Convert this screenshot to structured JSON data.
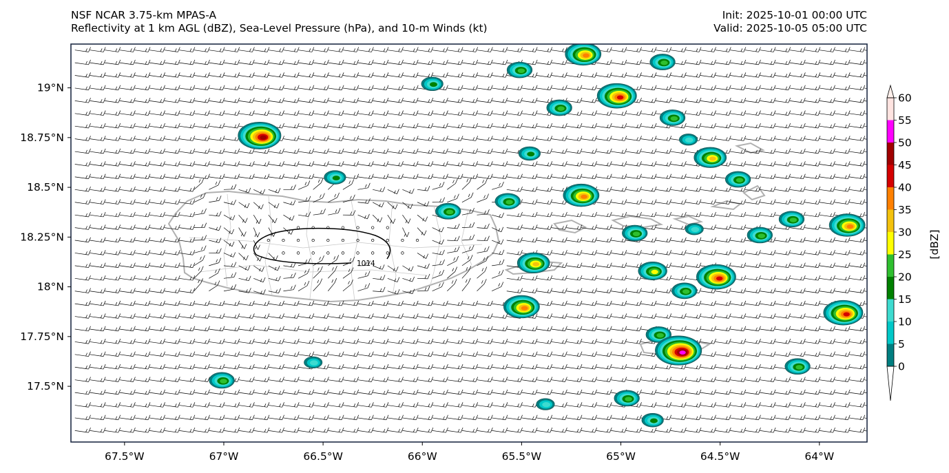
{
  "header": {
    "model": "NSF NCAR 3.75-km MPAS-A",
    "fields": "Reflectivity at 1 km AGL (dBZ), Sea-Level Pressure (hPa), and 10-m Winds (kt)",
    "init": "Init: 2025-10-01 00:00 UTC",
    "valid": "Valid: 2025-10-05 05:00 UTC"
  },
  "map": {
    "lon_range": [
      -67.77,
      -63.76
    ],
    "lat_range": [
      17.22,
      19.22
    ],
    "lon_ticks": [
      {
        "value": -67.5,
        "label": "67.5°W"
      },
      {
        "value": -67.0,
        "label": "67°W"
      },
      {
        "value": -66.5,
        "label": "66.5°W"
      },
      {
        "value": -66.0,
        "label": "66°W"
      },
      {
        "value": -65.5,
        "label": "65.5°W"
      },
      {
        "value": -65.0,
        "label": "65°W"
      },
      {
        "value": -64.5,
        "label": "64.5°W"
      },
      {
        "value": -64.0,
        "label": "64°W"
      }
    ],
    "lat_ticks": [
      {
        "value": 19.0,
        "label": "19°N"
      },
      {
        "value": 18.75,
        "label": "18.75°N"
      },
      {
        "value": 18.5,
        "label": "18.5°N"
      },
      {
        "value": 18.25,
        "label": "18.25°N"
      },
      {
        "value": 18.0,
        "label": "18°N"
      },
      {
        "value": 17.75,
        "label": "17.75°N"
      },
      {
        "value": 17.5,
        "label": "17.5°N"
      }
    ],
    "isobar_label": "1014",
    "isobar_value_hpa": 1014
  },
  "colorbar": {
    "label": "[dBZ]",
    "levels": [
      0,
      5,
      10,
      15,
      20,
      25,
      30,
      35,
      40,
      45,
      50,
      55,
      60
    ],
    "tick_labels": [
      "0",
      "5",
      "10",
      "15",
      "20",
      "25",
      "30",
      "35",
      "40",
      "45",
      "50",
      "55",
      "60"
    ],
    "colors": [
      "#007e80",
      "#00c8c8",
      "#3ddbd0",
      "#008000",
      "#2fbf2f",
      "#ffff00",
      "#f4c20d",
      "#ff8000",
      "#d40000",
      "#a00000",
      "#ff00ff",
      "#ffe4e1"
    ],
    "under_color": "#ffffff",
    "over_color": "#fff0eb"
  },
  "chart_data": {
    "type": "map",
    "title": "Reflectivity at 1 km AGL (dBZ), Sea-Level Pressure (hPa), and 10-m Winds (kt)",
    "region": "Puerto Rico and Virgin Islands",
    "storm_cells": [
      {
        "lon": -65.19,
        "lat": 19.17,
        "max_dbz": 35
      },
      {
        "lon": -64.79,
        "lat": 19.13,
        "max_dbz": 20
      },
      {
        "lon": -65.51,
        "lat": 19.09,
        "max_dbz": 20
      },
      {
        "lon": -65.95,
        "lat": 19.02,
        "max_dbz": 15
      },
      {
        "lon": -65.02,
        "lat": 18.96,
        "max_dbz": 40
      },
      {
        "lon": -65.31,
        "lat": 18.9,
        "max_dbz": 20
      },
      {
        "lon": -64.74,
        "lat": 18.85,
        "max_dbz": 20
      },
      {
        "lon": -66.82,
        "lat": 18.76,
        "max_dbz": 45
      },
      {
        "lon": -64.66,
        "lat": 18.74,
        "max_dbz": 10
      },
      {
        "lon": -65.46,
        "lat": 18.67,
        "max_dbz": 15
      },
      {
        "lon": -64.55,
        "lat": 18.65,
        "max_dbz": 30
      },
      {
        "lon": -64.41,
        "lat": 18.54,
        "max_dbz": 20
      },
      {
        "lon": -65.2,
        "lat": 18.46,
        "max_dbz": 35
      },
      {
        "lon": -66.44,
        "lat": 18.55,
        "max_dbz": 15
      },
      {
        "lon": -65.57,
        "lat": 18.43,
        "max_dbz": 20
      },
      {
        "lon": -65.87,
        "lat": 18.38,
        "max_dbz": 20
      },
      {
        "lon": -64.14,
        "lat": 18.34,
        "max_dbz": 20
      },
      {
        "lon": -63.86,
        "lat": 18.31,
        "max_dbz": 35
      },
      {
        "lon": -64.93,
        "lat": 18.27,
        "max_dbz": 20
      },
      {
        "lon": -64.63,
        "lat": 18.29,
        "max_dbz": 10
      },
      {
        "lon": -64.3,
        "lat": 18.26,
        "max_dbz": 20
      },
      {
        "lon": -65.44,
        "lat": 18.12,
        "max_dbz": 30
      },
      {
        "lon": -64.84,
        "lat": 18.08,
        "max_dbz": 25
      },
      {
        "lon": -64.52,
        "lat": 18.05,
        "max_dbz": 40
      },
      {
        "lon": -64.68,
        "lat": 17.98,
        "max_dbz": 20
      },
      {
        "lon": -65.5,
        "lat": 17.9,
        "max_dbz": 35
      },
      {
        "lon": -63.88,
        "lat": 17.87,
        "max_dbz": 40
      },
      {
        "lon": -64.81,
        "lat": 17.76,
        "max_dbz": 20
      },
      {
        "lon": -64.71,
        "lat": 17.68,
        "max_dbz": 50
      },
      {
        "lon": -64.11,
        "lat": 17.6,
        "max_dbz": 20
      },
      {
        "lon": -66.55,
        "lat": 17.62,
        "max_dbz": 10
      },
      {
        "lon": -67.01,
        "lat": 17.53,
        "max_dbz": 20
      },
      {
        "lon": -64.97,
        "lat": 17.44,
        "max_dbz": 20
      },
      {
        "lon": -65.38,
        "lat": 17.41,
        "max_dbz": 10
      },
      {
        "lon": -64.84,
        "lat": 17.33,
        "max_dbz": 15
      }
    ],
    "sea_level_pressure_contours": [
      {
        "value_hpa": 1014,
        "center_lon": -66.41,
        "center_lat": 18.22
      }
    ],
    "wind_field": {
      "units": "kt",
      "dominant_direction": "easterly trade winds",
      "barb_spacing_deg": 0.075
    }
  }
}
